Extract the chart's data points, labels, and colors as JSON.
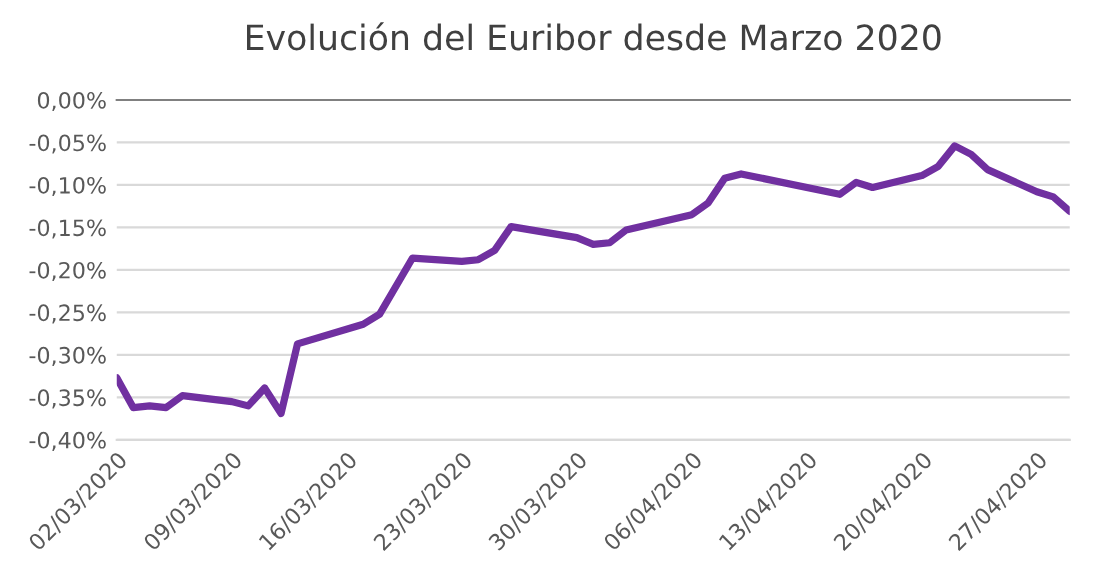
{
  "chart_data": {
    "type": "line",
    "title": "Evolución del Euribor desde Marzo 2020",
    "x": [
      "2020-03-02",
      "2020-03-03",
      "2020-03-04",
      "2020-03-05",
      "2020-03-06",
      "2020-03-09",
      "2020-03-10",
      "2020-03-11",
      "2020-03-12",
      "2020-03-13",
      "2020-03-17",
      "2020-03-18",
      "2020-03-20",
      "2020-03-23",
      "2020-03-24",
      "2020-03-25",
      "2020-03-26",
      "2020-03-30",
      "2020-03-31",
      "2020-04-01",
      "2020-04-02",
      "2020-04-06",
      "2020-04-07",
      "2020-04-08",
      "2020-04-09",
      "2020-04-15",
      "2020-04-16",
      "2020-04-17",
      "2020-04-20",
      "2020-04-21",
      "2020-04-22",
      "2020-04-23",
      "2020-04-24",
      "2020-04-27",
      "2020-04-28",
      "2020-04-29"
    ],
    "series": [
      {
        "color": "#7030a0",
        "values": [
          -0.327,
          -0.362,
          -0.36,
          -0.362,
          -0.348,
          -0.355,
          -0.36,
          -0.339,
          -0.369,
          -0.287,
          -0.264,
          -0.252,
          -0.186,
          -0.19,
          -0.188,
          -0.177,
          -0.149,
          -0.162,
          -0.17,
          -0.168,
          -0.153,
          -0.135,
          -0.121,
          -0.092,
          -0.087,
          -0.111,
          -0.097,
          -0.103,
          -0.089,
          -0.078,
          -0.054,
          -0.064,
          -0.082,
          -0.108,
          -0.114,
          -0.131
        ]
      }
    ],
    "xlim": [
      "2020-03-02",
      "2020-04-29"
    ],
    "xticks": [
      {
        "value": "2020-03-02",
        "label": "02/03/2020"
      },
      {
        "value": "2020-03-09",
        "label": "09/03/2020"
      },
      {
        "value": "2020-03-16",
        "label": "16/03/2020"
      },
      {
        "value": "2020-03-23",
        "label": "23/03/2020"
      },
      {
        "value": "2020-03-30",
        "label": "30/03/2020"
      },
      {
        "value": "2020-04-06",
        "label": "06/04/2020"
      },
      {
        "value": "2020-04-13",
        "label": "13/04/2020"
      },
      {
        "value": "2020-04-20",
        "label": "20/04/2020"
      },
      {
        "value": "2020-04-27",
        "label": "27/04/2020"
      }
    ],
    "ylim": [
      -0.4,
      0
    ],
    "yticks": [
      {
        "value": 0,
        "label": "0,00%"
      },
      {
        "value": -0.05,
        "label": "-0,05%"
      },
      {
        "value": -0.1,
        "label": "-0,10%"
      },
      {
        "value": -0.15,
        "label": "-0,15%"
      },
      {
        "value": -0.2,
        "label": "-0,20%"
      },
      {
        "value": -0.25,
        "label": "-0,25%"
      },
      {
        "value": -0.3,
        "label": "-0,30%"
      },
      {
        "value": -0.35,
        "label": "-0,35%"
      },
      {
        "value": -0.4,
        "label": "-0,40%"
      }
    ],
    "grid": "y",
    "marker": "none",
    "line_style": "solid"
  }
}
